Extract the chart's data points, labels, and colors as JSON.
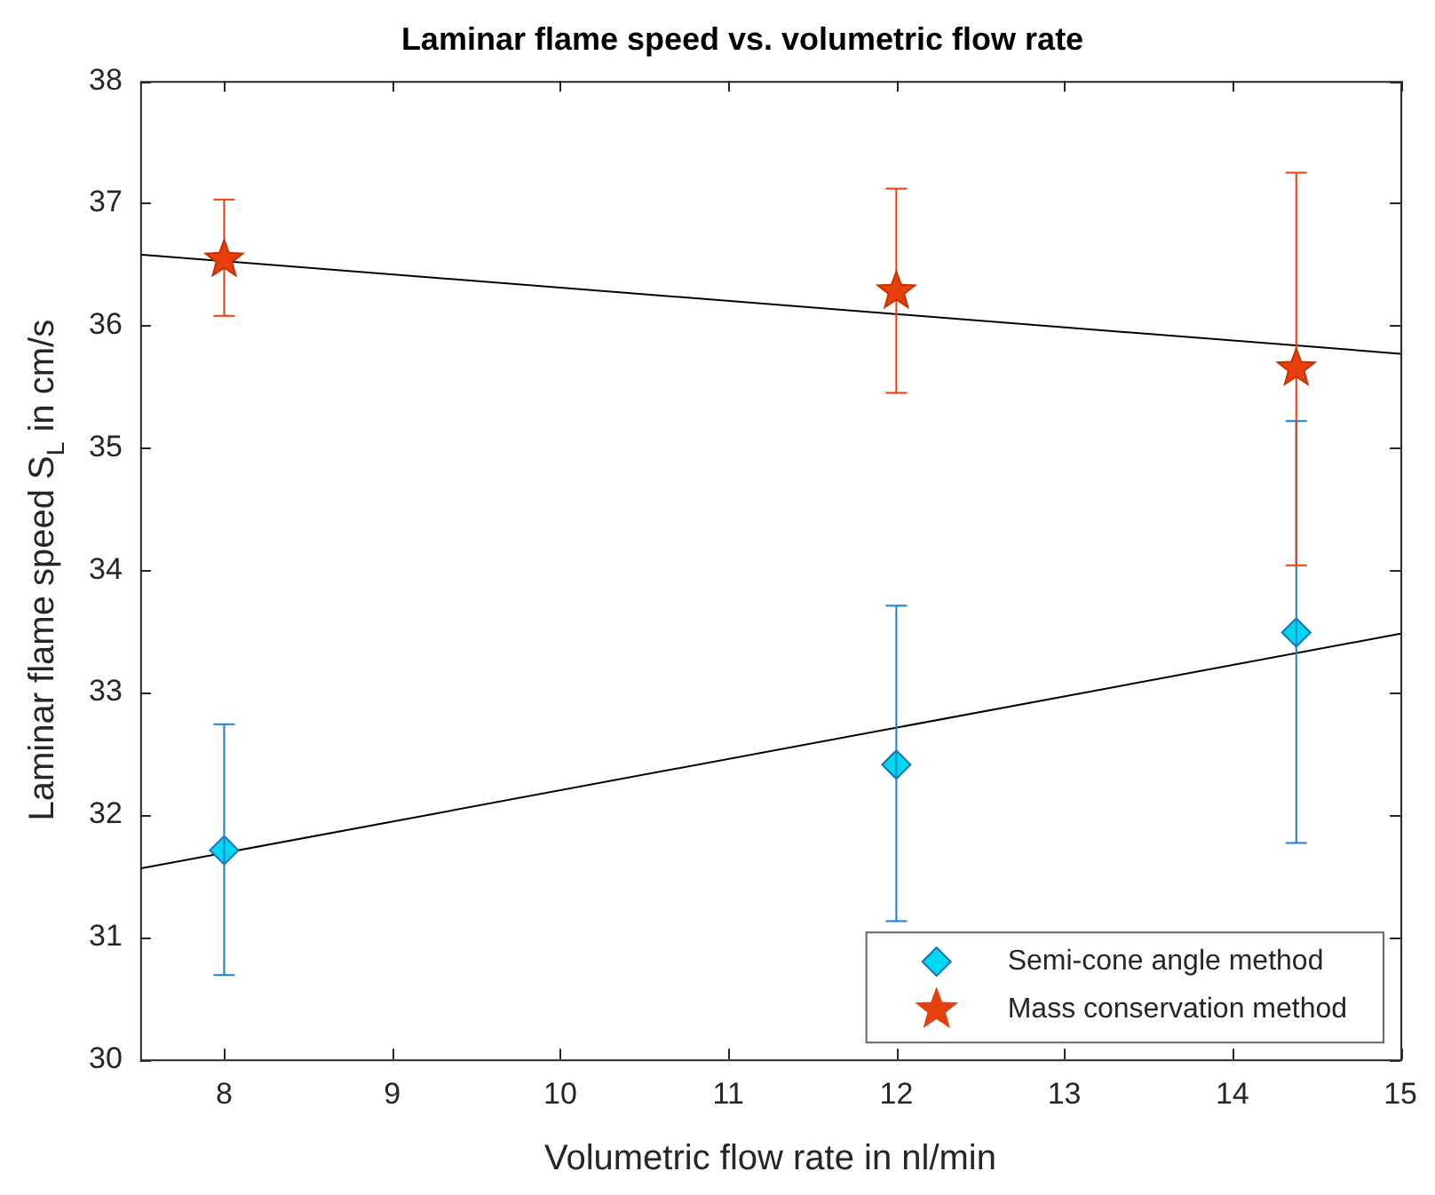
{
  "chart_data": {
    "type": "scatter",
    "title": "Laminar flame speed vs. volumetric flow rate",
    "xlabel": "Volumetric flow rate in nl/min",
    "ylabel": "Laminar flame speed S$_{L}$ in cm/s",
    "xlim": [
      7.5,
      15
    ],
    "xticks": [
      8,
      9,
      10,
      11,
      12,
      13,
      14,
      15
    ],
    "ylim": [
      30,
      38
    ],
    "yticks": [
      30,
      31,
      32,
      33,
      34,
      35,
      36,
      37,
      38
    ],
    "grid": false,
    "legend": "bottom right",
    "series": [
      {
        "name": "Semi-cone angle method",
        "color": "#00d8f0",
        "marker": "diamond",
        "x": [
          8,
          12,
          14.38
        ],
        "values": [
          31.71,
          32.41,
          33.49
        ],
        "errors": [
          [
            30.69,
            32.74
          ],
          [
            31.13,
            33.71
          ],
          [
            31.77,
            35.22
          ]
        ]
      },
      {
        "name": "Mass conservation method",
        "color": "#e8400c",
        "marker": "star",
        "x": [
          8,
          12,
          14.38
        ],
        "values": [
          36.54,
          36.28,
          35.65
        ],
        "errors": [
          [
            36.08,
            37.03
          ],
          [
            35.45,
            37.12
          ],
          [
            34.04,
            37.25
          ]
        ]
      },
      {
        "type": "line",
        "color": "#000000",
        "x": [
          7.5,
          15
        ],
        "values": [
          31.56,
          33.48
        ]
      },
      {
        "type": "line",
        "color": "#000000",
        "x": [
          7.5,
          15
        ],
        "values": [
          36.58,
          35.77
        ]
      }
    ]
  }
}
